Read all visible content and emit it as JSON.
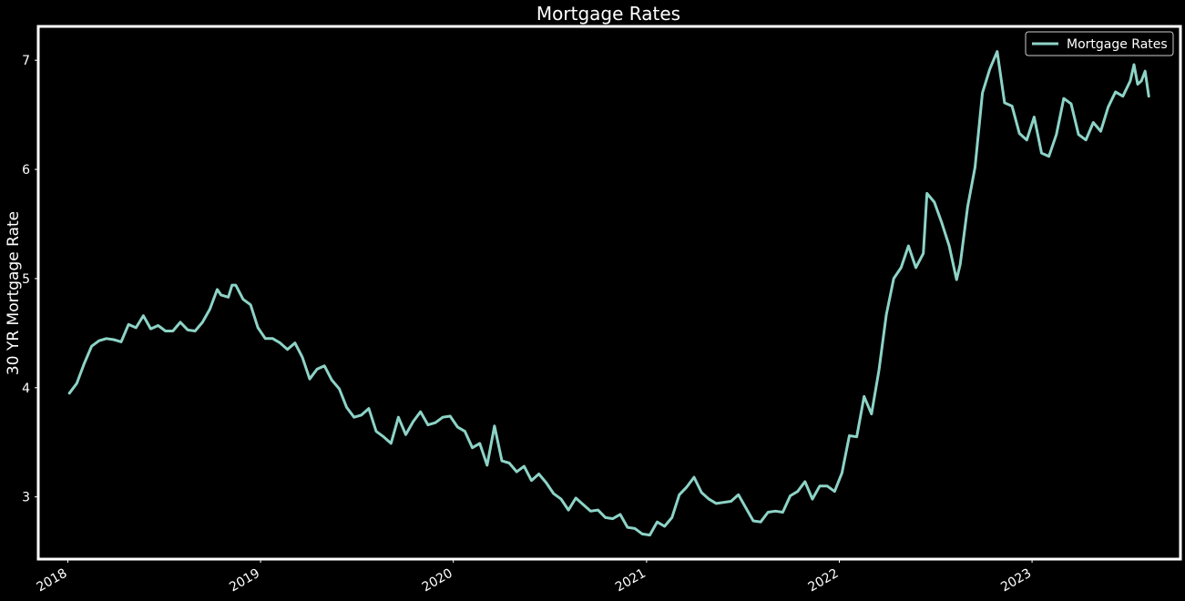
{
  "chart_data": {
    "type": "line",
    "title": "Mortgage Rates",
    "xlabel": "",
    "ylabel": "30 YR Mortgage Rate",
    "x_ticks": [
      "2018",
      "2019",
      "2020",
      "2021",
      "2022",
      "2023"
    ],
    "y_ticks": [
      3,
      4,
      5,
      6,
      7
    ],
    "xlim": [
      "2017-11-06",
      "2023-10-09"
    ],
    "ylim": [
      2.43,
      7.31
    ],
    "grid": false,
    "legend": {
      "placement": "top-right",
      "entries": [
        "Mortgage Rates"
      ]
    },
    "colors": {
      "background": "#000000",
      "line": "#8dd3c7",
      "frame": "#ffffff",
      "text": "#ffffff"
    },
    "series": [
      {
        "name": "Mortgage Rates",
        "points": [
          [
            "2018-01-04",
            3.95
          ],
          [
            "2018-01-18",
            4.04
          ],
          [
            "2018-02-01",
            4.22
          ],
          [
            "2018-02-15",
            4.38
          ],
          [
            "2018-03-01",
            4.43
          ],
          [
            "2018-03-15",
            4.45
          ],
          [
            "2018-03-29",
            4.44
          ],
          [
            "2018-04-12",
            4.42
          ],
          [
            "2018-04-26",
            4.58
          ],
          [
            "2018-05-10",
            4.55
          ],
          [
            "2018-05-24",
            4.66
          ],
          [
            "2018-06-07",
            4.54
          ],
          [
            "2018-06-21",
            4.57
          ],
          [
            "2018-07-05",
            4.52
          ],
          [
            "2018-07-19",
            4.52
          ],
          [
            "2018-08-02",
            4.6
          ],
          [
            "2018-08-16",
            4.53
          ],
          [
            "2018-08-30",
            4.52
          ],
          [
            "2018-09-13",
            4.6
          ],
          [
            "2018-09-27",
            4.72
          ],
          [
            "2018-10-11",
            4.9
          ],
          [
            "2018-10-18",
            4.85
          ],
          [
            "2018-11-01",
            4.83
          ],
          [
            "2018-11-08",
            4.94
          ],
          [
            "2018-11-15",
            4.94
          ],
          [
            "2018-11-29",
            4.81
          ],
          [
            "2018-12-13",
            4.76
          ],
          [
            "2018-12-27",
            4.55
          ],
          [
            "2019-01-10",
            4.45
          ],
          [
            "2019-01-24",
            4.45
          ],
          [
            "2019-02-07",
            4.41
          ],
          [
            "2019-02-21",
            4.35
          ],
          [
            "2019-03-07",
            4.41
          ],
          [
            "2019-03-21",
            4.28
          ],
          [
            "2019-04-04",
            4.08
          ],
          [
            "2019-04-18",
            4.17
          ],
          [
            "2019-05-02",
            4.2
          ],
          [
            "2019-05-16",
            4.07
          ],
          [
            "2019-05-30",
            3.99
          ],
          [
            "2019-06-13",
            3.82
          ],
          [
            "2019-06-27",
            3.73
          ],
          [
            "2019-07-11",
            3.75
          ],
          [
            "2019-07-25",
            3.81
          ],
          [
            "2019-08-08",
            3.6
          ],
          [
            "2019-08-22",
            3.55
          ],
          [
            "2019-09-05",
            3.49
          ],
          [
            "2019-09-19",
            3.73
          ],
          [
            "2019-10-03",
            3.57
          ],
          [
            "2019-10-17",
            3.69
          ],
          [
            "2019-10-31",
            3.78
          ],
          [
            "2019-11-14",
            3.66
          ],
          [
            "2019-11-28",
            3.68
          ],
          [
            "2019-12-12",
            3.73
          ],
          [
            "2019-12-26",
            3.74
          ],
          [
            "2020-01-09",
            3.64
          ],
          [
            "2020-01-23",
            3.6
          ],
          [
            "2020-02-06",
            3.45
          ],
          [
            "2020-02-20",
            3.49
          ],
          [
            "2020-03-05",
            3.29
          ],
          [
            "2020-03-19",
            3.65
          ],
          [
            "2020-04-02",
            3.33
          ],
          [
            "2020-04-16",
            3.31
          ],
          [
            "2020-04-30",
            3.23
          ],
          [
            "2020-05-14",
            3.28
          ],
          [
            "2020-05-28",
            3.15
          ],
          [
            "2020-06-11",
            3.21
          ],
          [
            "2020-06-25",
            3.13
          ],
          [
            "2020-07-09",
            3.03
          ],
          [
            "2020-07-23",
            2.98
          ],
          [
            "2020-08-06",
            2.88
          ],
          [
            "2020-08-20",
            2.99
          ],
          [
            "2020-09-03",
            2.93
          ],
          [
            "2020-09-17",
            2.87
          ],
          [
            "2020-10-01",
            2.88
          ],
          [
            "2020-10-15",
            2.81
          ],
          [
            "2020-10-29",
            2.8
          ],
          [
            "2020-11-12",
            2.84
          ],
          [
            "2020-11-26",
            2.72
          ],
          [
            "2020-12-10",
            2.71
          ],
          [
            "2020-12-24",
            2.66
          ],
          [
            "2021-01-07",
            2.65
          ],
          [
            "2021-01-21",
            2.77
          ],
          [
            "2021-02-04",
            2.73
          ],
          [
            "2021-02-18",
            2.81
          ],
          [
            "2021-03-04",
            3.02
          ],
          [
            "2021-03-18",
            3.09
          ],
          [
            "2021-04-01",
            3.18
          ],
          [
            "2021-04-15",
            3.04
          ],
          [
            "2021-04-29",
            2.98
          ],
          [
            "2021-05-13",
            2.94
          ],
          [
            "2021-05-27",
            2.95
          ],
          [
            "2021-06-10",
            2.96
          ],
          [
            "2021-06-24",
            3.02
          ],
          [
            "2021-07-08",
            2.9
          ],
          [
            "2021-07-22",
            2.78
          ],
          [
            "2021-08-05",
            2.77
          ],
          [
            "2021-08-19",
            2.86
          ],
          [
            "2021-09-02",
            2.87
          ],
          [
            "2021-09-16",
            2.86
          ],
          [
            "2021-09-30",
            3.01
          ],
          [
            "2021-10-14",
            3.05
          ],
          [
            "2021-10-28",
            3.14
          ],
          [
            "2021-11-11",
            2.98
          ],
          [
            "2021-11-25",
            3.1
          ],
          [
            "2021-12-09",
            3.1
          ],
          [
            "2021-12-23",
            3.05
          ],
          [
            "2022-01-06",
            3.22
          ],
          [
            "2022-01-20",
            3.56
          ],
          [
            "2022-02-03",
            3.55
          ],
          [
            "2022-02-17",
            3.92
          ],
          [
            "2022-03-03",
            3.76
          ],
          [
            "2022-03-17",
            4.16
          ],
          [
            "2022-03-31",
            4.67
          ],
          [
            "2022-04-14",
            5.0
          ],
          [
            "2022-04-28",
            5.1
          ],
          [
            "2022-05-12",
            5.3
          ],
          [
            "2022-05-26",
            5.1
          ],
          [
            "2022-06-09",
            5.23
          ],
          [
            "2022-06-16",
            5.78
          ],
          [
            "2022-06-30",
            5.7
          ],
          [
            "2022-07-14",
            5.51
          ],
          [
            "2022-07-28",
            5.3
          ],
          [
            "2022-08-11",
            4.99
          ],
          [
            "2022-08-18",
            5.13
          ],
          [
            "2022-09-01",
            5.66
          ],
          [
            "2022-09-15",
            6.02
          ],
          [
            "2022-09-29",
            6.7
          ],
          [
            "2022-10-13",
            6.92
          ],
          [
            "2022-10-27",
            7.08
          ],
          [
            "2022-11-10",
            6.61
          ],
          [
            "2022-11-24",
            6.58
          ],
          [
            "2022-12-08",
            6.33
          ],
          [
            "2022-12-22",
            6.27
          ],
          [
            "2023-01-05",
            6.48
          ],
          [
            "2023-01-19",
            6.15
          ],
          [
            "2023-02-02",
            6.12
          ],
          [
            "2023-02-16",
            6.32
          ],
          [
            "2023-03-02",
            6.65
          ],
          [
            "2023-03-16",
            6.6
          ],
          [
            "2023-03-30",
            6.32
          ],
          [
            "2023-04-13",
            6.27
          ],
          [
            "2023-04-27",
            6.43
          ],
          [
            "2023-05-11",
            6.35
          ],
          [
            "2023-05-25",
            6.57
          ],
          [
            "2023-06-08",
            6.71
          ],
          [
            "2023-06-22",
            6.67
          ],
          [
            "2023-07-06",
            6.81
          ],
          [
            "2023-07-13",
            6.96
          ],
          [
            "2023-07-20",
            6.78
          ],
          [
            "2023-07-27",
            6.81
          ],
          [
            "2023-08-03",
            6.9
          ],
          [
            "2023-08-10",
            6.67
          ]
        ]
      }
    ]
  }
}
